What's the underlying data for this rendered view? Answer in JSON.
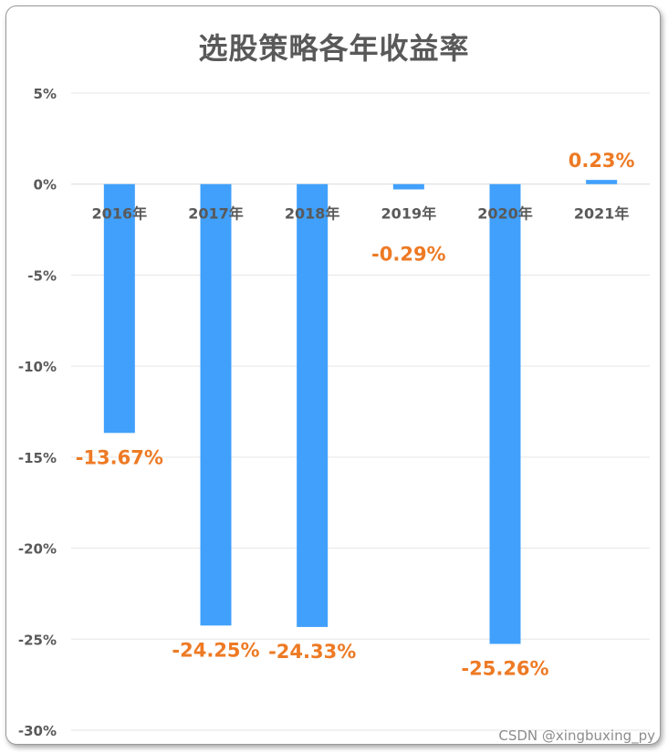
{
  "chart_data": {
    "type": "bar",
    "title": "选股策略各年收益率",
    "categories": [
      "2016年",
      "2017年",
      "2018年",
      "2019年",
      "2020年",
      "2021年"
    ],
    "values": [
      -13.67,
      -24.25,
      -24.33,
      -0.29,
      -25.26,
      0.23
    ],
    "value_labels": [
      "-13.67%",
      "-24.25%",
      "-24.33%",
      "-0.29%",
      "-25.26%",
      "0.23%"
    ],
    "ylim": [
      -30,
      5
    ],
    "yticks": [
      5,
      0,
      -5,
      -10,
      -15,
      -20,
      -25,
      -30
    ],
    "ytick_labels": [
      "5%",
      "0%",
      "-5%",
      "-10%",
      "-15%",
      "-20%",
      "-25%",
      "-30%"
    ],
    "grid": true,
    "bar_color": "#40a0fc",
    "label_color": "#ee7a24",
    "text_color": "#595959"
  },
  "watermark": "CSDN @xingbuxing_py"
}
